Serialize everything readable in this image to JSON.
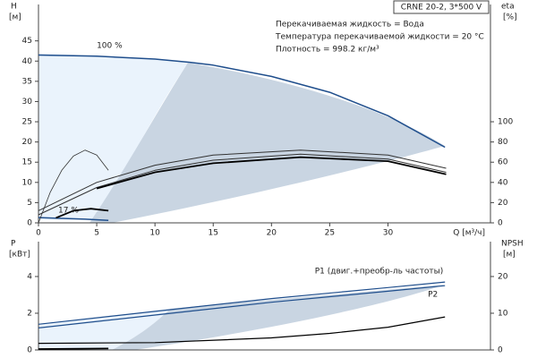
{
  "chart_data": [
    {
      "type": "line",
      "title": "CRNE 20-2, 3*500 V",
      "annotations": [
        "Перекачиваемая жидкость = Вода",
        "Температура перекачиваемой жидкости = 20 °C",
        "Плотность = 998.2 кг/м³"
      ],
      "xlabel": "Q [м³/ч]",
      "ylabel": "H",
      "yunit": "[м]",
      "y2label": "eta",
      "y2unit": "[%]",
      "xlim": [
        0,
        38.8
      ],
      "xticks": [
        0,
        5,
        10,
        15,
        20,
        25,
        30
      ],
      "ylim": [
        0,
        54
      ],
      "yticks": [
        0,
        5,
        10,
        15,
        20,
        25,
        30,
        35,
        40,
        45
      ],
      "y2lim": [
        0,
        216
      ],
      "y2ticks": [
        0,
        20,
        40,
        60,
        80,
        100
      ],
      "grid": false,
      "series": [
        {
          "name": "100 %",
          "color": "#1f4e8c",
          "width": 1.5,
          "x": [
            0,
            5,
            10,
            13,
            15,
            20,
            25,
            30,
            34.9
          ],
          "values": [
            41.5,
            41.2,
            40.5,
            39.7,
            39,
            36.2,
            32.3,
            26.5,
            18.7
          ]
        },
        {
          "name": "17 %",
          "color": "#1f4e8c",
          "width": 1.5,
          "x": [
            0,
            2,
            4,
            6
          ],
          "values": [
            1.3,
            1.1,
            0.9,
            0.6
          ]
        },
        {
          "color": "#333333",
          "width": 1,
          "axis": "y2",
          "x": [
            0,
            5,
            10,
            15,
            22.5,
            30,
            35
          ],
          "values": [
            12,
            40,
            57,
            67,
            72,
            67,
            54
          ]
        },
        {
          "color": "#333333",
          "width": 1,
          "axis": "y2",
          "x": [
            0,
            5,
            10,
            15,
            22.5,
            30,
            35
          ],
          "values": [
            8,
            35,
            52,
            62,
            68,
            63,
            50
          ]
        },
        {
          "color": "#000000",
          "width": 1.8,
          "axis": "y2",
          "x": [
            5,
            10,
            15,
            22.5,
            30,
            35
          ],
          "values": [
            34,
            50,
            59,
            65,
            61,
            48
          ]
        },
        {
          "color": "#333333",
          "width": 0.8,
          "axis": "y2",
          "x": [
            0,
            1,
            2,
            3,
            4,
            5,
            6
          ],
          "values": [
            0,
            30,
            52,
            66,
            72,
            67,
            52
          ]
        },
        {
          "color": "#000000",
          "width": 1.8,
          "axis": "y2",
          "x": [
            1.5,
            3,
            4.5,
            6
          ],
          "values": [
            5,
            12,
            14,
            12
          ]
        }
      ]
    },
    {
      "type": "line",
      "ylabel": "P",
      "yunit": "[кВт]",
      "y2label": "NPSH",
      "y2unit": "[м]",
      "xlim": [
        0,
        38.8
      ],
      "ylim": [
        0,
        5.9
      ],
      "yticks": [
        0,
        2,
        4
      ],
      "y2lim": [
        0,
        29.5
      ],
      "y2ticks": [
        0,
        10,
        20
      ],
      "grid": false,
      "series": [
        {
          "name": "P1 (двиг.+преобр-ль частоты)",
          "color": "#1f4e8c",
          "width": 1.2,
          "x": [
            0,
            10,
            20,
            30,
            34.9
          ],
          "values": [
            1.4,
            2.1,
            2.8,
            3.4,
            3.7
          ]
        },
        {
          "name": "P2",
          "color": "#1f4e8c",
          "width": 1.2,
          "x": [
            0,
            10,
            20,
            30,
            34.9
          ],
          "values": [
            1.2,
            1.9,
            2.6,
            3.2,
            3.5
          ]
        },
        {
          "color": "#000000",
          "width": 1.2,
          "axis": "y2",
          "x": [
            0,
            10,
            20,
            25,
            30,
            34.9
          ],
          "values": [
            1.8,
            2,
            3.3,
            4.5,
            6.2,
            9
          ]
        },
        {
          "color": "#000000",
          "width": 1.8,
          "x": [
            0,
            6
          ],
          "values": [
            0.05,
            0.08
          ]
        }
      ]
    }
  ]
}
